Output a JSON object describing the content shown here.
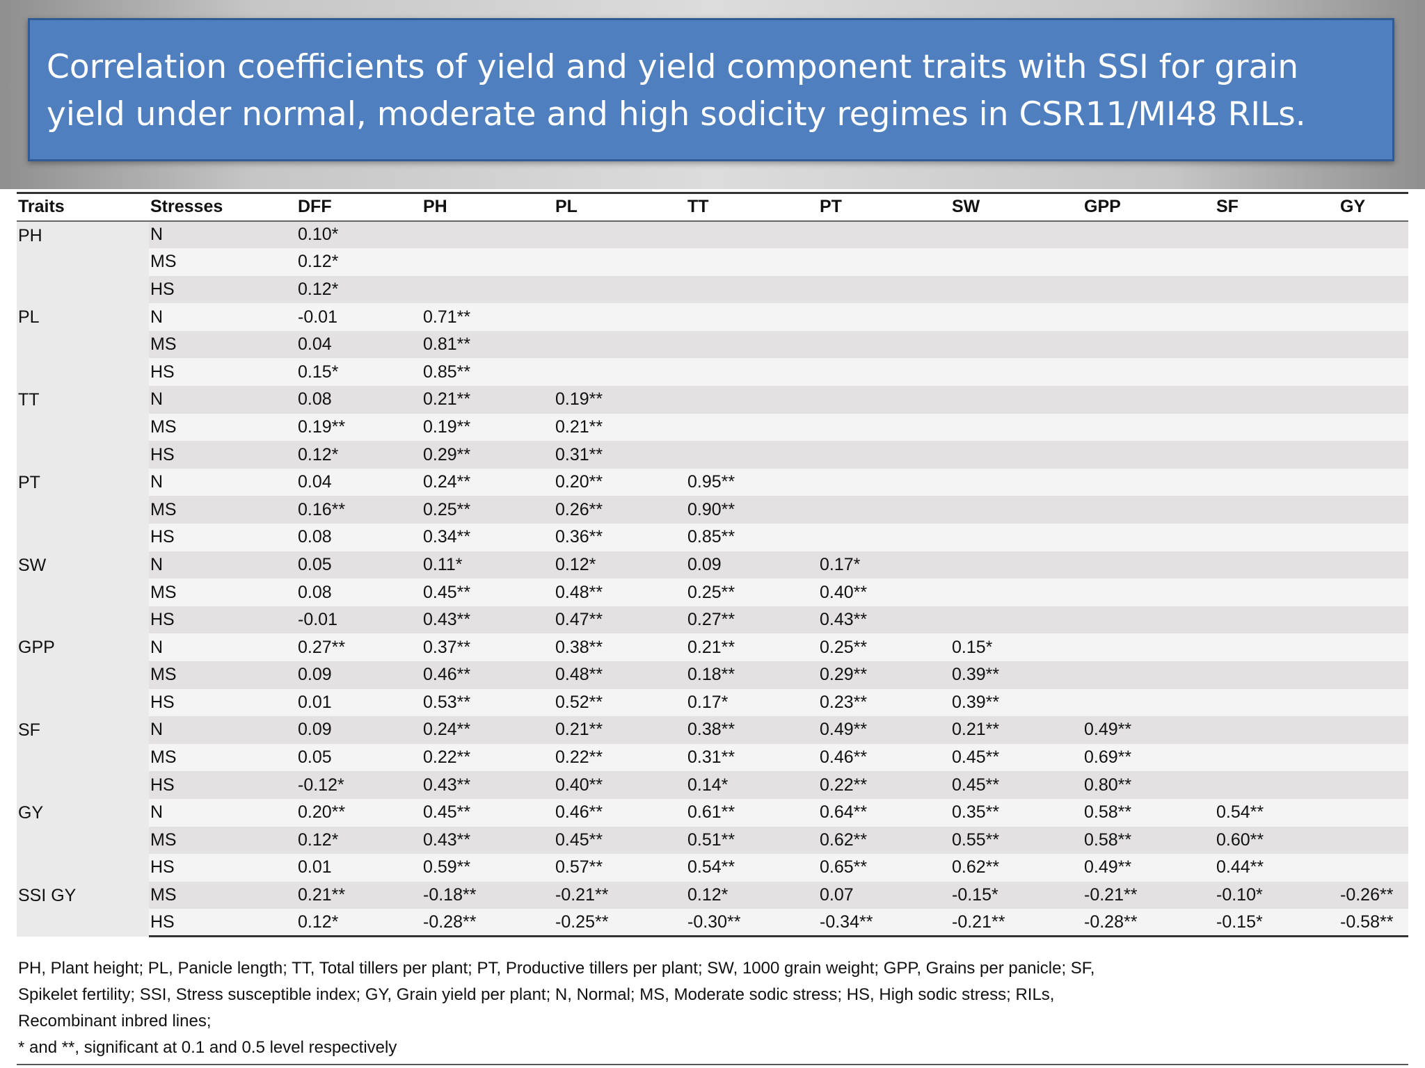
{
  "title": "Correlation coefficients of yield and yield component traits with SSI for grain yield under normal, moderate and high sodicity regimes in CSR11/MI48 RILs.",
  "table": {
    "headers": [
      "Traits",
      "Stresses",
      "DFF",
      "PH",
      "PL",
      "TT",
      "PT",
      "SW",
      "GPP",
      "SF",
      "GY"
    ],
    "groups": [
      {
        "trait": "PH",
        "rows": [
          [
            "N",
            "0.10*",
            "",
            "",
            "",
            "",
            "",
            "",
            "",
            ""
          ],
          [
            "MS",
            "0.12*",
            "",
            "",
            "",
            "",
            "",
            "",
            "",
            ""
          ],
          [
            "HS",
            "0.12*",
            "",
            "",
            "",
            "",
            "",
            "",
            "",
            ""
          ]
        ]
      },
      {
        "trait": "PL",
        "rows": [
          [
            "N",
            "-0.01",
            "0.71**",
            "",
            "",
            "",
            "",
            "",
            "",
            ""
          ],
          [
            "MS",
            "0.04",
            "0.81**",
            "",
            "",
            "",
            "",
            "",
            "",
            ""
          ],
          [
            "HS",
            "0.15*",
            "0.85**",
            "",
            "",
            "",
            "",
            "",
            "",
            ""
          ]
        ]
      },
      {
        "trait": "TT",
        "rows": [
          [
            "N",
            "0.08",
            "0.21**",
            "0.19**",
            "",
            "",
            "",
            "",
            "",
            ""
          ],
          [
            "MS",
            "0.19**",
            "0.19**",
            "0.21**",
            "",
            "",
            "",
            "",
            "",
            ""
          ],
          [
            "HS",
            "0.12*",
            "0.29**",
            "0.31**",
            "",
            "",
            "",
            "",
            "",
            ""
          ]
        ]
      },
      {
        "trait": "PT",
        "rows": [
          [
            "N",
            "0.04",
            "0.24**",
            "0.20**",
            "0.95**",
            "",
            "",
            "",
            "",
            ""
          ],
          [
            "MS",
            "0.16**",
            "0.25**",
            "0.26**",
            "0.90**",
            "",
            "",
            "",
            "",
            ""
          ],
          [
            "HS",
            "0.08",
            "0.34**",
            "0.36**",
            "0.85**",
            "",
            "",
            "",
            "",
            ""
          ]
        ]
      },
      {
        "trait": "SW",
        "rows": [
          [
            "N",
            "0.05",
            "0.11*",
            "0.12*",
            "0.09",
            "0.17*",
            "",
            "",
            "",
            ""
          ],
          [
            "MS",
            "0.08",
            "0.45**",
            "0.48**",
            "0.25**",
            "0.40**",
            "",
            "",
            "",
            ""
          ],
          [
            "HS",
            "-0.01",
            "0.43**",
            "0.47**",
            "0.27**",
            "0.43**",
            "",
            "",
            "",
            ""
          ]
        ]
      },
      {
        "trait": "GPP",
        "rows": [
          [
            "N",
            "0.27**",
            "0.37**",
            "0.38**",
            "0.21**",
            "0.25**",
            "0.15*",
            "",
            "",
            ""
          ],
          [
            "MS",
            "0.09",
            "0.46**",
            "0.48**",
            "0.18**",
            "0.29**",
            "0.39**",
            "",
            "",
            ""
          ],
          [
            "HS",
            "0.01",
            "0.53**",
            "0.52**",
            "0.17*",
            "0.23**",
            "0.39**",
            "",
            "",
            ""
          ]
        ]
      },
      {
        "trait": "SF",
        "rows": [
          [
            "N",
            "0.09",
            "0.24**",
            "0.21**",
            "0.38**",
            "0.49**",
            "0.21**",
            "0.49**",
            "",
            ""
          ],
          [
            "MS",
            "0.05",
            "0.22**",
            "0.22**",
            "0.31**",
            "0.46**",
            "0.45**",
            "0.69**",
            "",
            ""
          ],
          [
            "HS",
            "-0.12*",
            "0.43**",
            "0.40**",
            "0.14*",
            "0.22**",
            "0.45**",
            "0.80**",
            "",
            ""
          ]
        ]
      },
      {
        "trait": "GY",
        "rows": [
          [
            "N",
            "0.20**",
            "0.45**",
            "0.46**",
            "0.61**",
            "0.64**",
            "0.35**",
            "0.58**",
            "0.54**",
            ""
          ],
          [
            "MS",
            "0.12*",
            "0.43**",
            "0.45**",
            "0.51**",
            "0.62**",
            "0.55**",
            "0.58**",
            "0.60**",
            ""
          ],
          [
            "HS",
            "0.01",
            "0.59**",
            "0.57**",
            "0.54**",
            "0.65**",
            "0.62**",
            "0.49**",
            "0.44**",
            ""
          ]
        ]
      },
      {
        "trait": "SSI GY",
        "rows": [
          [
            "MS",
            "0.21**",
            "-0.18**",
            "-0.21**",
            "0.12*",
            "0.07",
            "-0.15*",
            "-0.21**",
            "-0.10*",
            "-0.26**"
          ],
          [
            "HS",
            "0.12*",
            "-0.28**",
            "-0.25**",
            "-0.30**",
            "-0.34**",
            "-0.21**",
            "-0.28**",
            "-0.15*",
            "-0.58**"
          ]
        ]
      }
    ]
  },
  "footnote": {
    "line1": "PH, Plant height; PL, Panicle length; TT, Total tillers per plant; PT, Productive tillers per plant; SW, 1000 grain weight; GPP, Grains per panicle; SF,",
    "line2": "Spikelet fertility; SSI, Stress susceptible index; GY, Grain yield per plant; N, Normal; MS, Moderate sodic stress; HS, High sodic stress; RILs,",
    "line3": "Recombinant inbred lines;",
    "line4": "* and **, significant at 0.1 and 0.5 level respectively"
  }
}
